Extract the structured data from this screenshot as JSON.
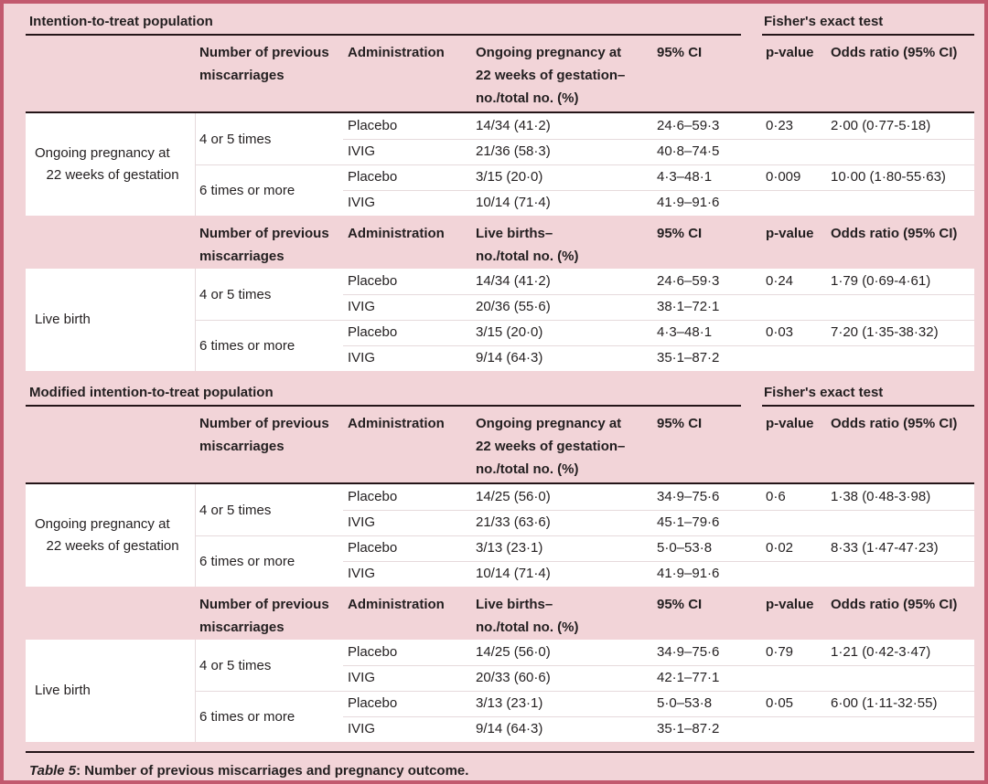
{
  "colors": {
    "frame_border": "#c2596e",
    "background_pink": "#f2d4d8",
    "dark_rule": "#241518",
    "light_rule": "#e6dadc",
    "data_background": "#ffffff",
    "text": "#231f20"
  },
  "caption": {
    "label": "Table 5",
    "text": ": Number of previous miscarriages and pregnancy outcome."
  },
  "sections": [
    {
      "title": "Intention-to-treat population",
      "fisher": "Fisher's exact test",
      "blocks": [
        {
          "header": {
            "miscarriages": "Number of previous miscarriages",
            "administration": "Administration",
            "outcome": "Ongoing pregnancy at\n22 weeks of gestation–\nno./total no. (%)",
            "ci": "95% CI",
            "p": "p-value",
            "or": "Odds ratio (95% CI)"
          },
          "row_label": "Ongoing pregnancy at\n   22 weeks of gestation",
          "groups": [
            {
              "times": "4 or 5 times",
              "p": "0·23",
              "or": "2·00 (0·77-5·18)",
              "rows": [
                {
                  "admin": "Placebo",
                  "outcome": "14/34 (41·2)",
                  "ci": "24·6–59·3"
                },
                {
                  "admin": "IVIG",
                  "outcome": "21/36 (58·3)",
                  "ci": "40·8–74·5"
                }
              ]
            },
            {
              "times": "6 times or more",
              "p": "0·009",
              "or": "10·00 (1·80-55·63)",
              "rows": [
                {
                  "admin": "Placebo",
                  "outcome": "3/15 (20·0)",
                  "ci": "4·3–48·1"
                },
                {
                  "admin": "IVIG",
                  "outcome": "10/14 (71·4)",
                  "ci": "41·9–91·6"
                }
              ]
            }
          ]
        },
        {
          "header": {
            "miscarriages": "Number of previous miscarriages",
            "administration": "Administration",
            "outcome": "Live births–\nno./total no. (%)",
            "ci": "95% CI",
            "p": "p-value",
            "or": "Odds ratio (95% CI)"
          },
          "row_label": "Live birth",
          "groups": [
            {
              "times": "4 or 5 times",
              "p": "0·24",
              "or": "1·79 (0·69-4·61)",
              "rows": [
                {
                  "admin": "Placebo",
                  "outcome": "14/34 (41·2)",
                  "ci": "24·6–59·3"
                },
                {
                  "admin": "IVIG",
                  "outcome": "20/36 (55·6)",
                  "ci": "38·1–72·1"
                }
              ]
            },
            {
              "times": "6 times or more",
              "p": "0·03",
              "or": "7·20 (1·35-38·32)",
              "rows": [
                {
                  "admin": "Placebo",
                  "outcome": "3/15 (20·0)",
                  "ci": "4·3–48·1"
                },
                {
                  "admin": "IVIG",
                  "outcome": "9/14 (64·3)",
                  "ci": "35·1–87·2"
                }
              ]
            }
          ]
        }
      ]
    },
    {
      "title": "Modified intention-to-treat population",
      "fisher": "Fisher's exact test",
      "blocks": [
        {
          "header": {
            "miscarriages": "Number of previous miscarriages",
            "administration": "Administration",
            "outcome": "Ongoing pregnancy at\n22 weeks of gestation–\nno./total no. (%)",
            "ci": "95% CI",
            "p": "p-value",
            "or": "Odds ratio (95% CI)"
          },
          "row_label": "Ongoing pregnancy at\n   22 weeks of gestation",
          "groups": [
            {
              "times": "4 or 5 times",
              "p": "0·6",
              "or": "1·38 (0·48-3·98)",
              "rows": [
                {
                  "admin": "Placebo",
                  "outcome": "14/25 (56·0)",
                  "ci": "34·9–75·6"
                },
                {
                  "admin": "IVIG",
                  "outcome": "21/33 (63·6)",
                  "ci": "45·1–79·6"
                }
              ]
            },
            {
              "times": "6 times or more",
              "p": "0·02",
              "or": "8·33 (1·47-47·23)",
              "rows": [
                {
                  "admin": "Placebo",
                  "outcome": "3/13 (23·1)",
                  "ci": "5·0–53·8"
                },
                {
                  "admin": "IVIG",
                  "outcome": "10/14 (71·4)",
                  "ci": "41·9–91·6"
                }
              ]
            }
          ]
        },
        {
          "header": {
            "miscarriages": "Number of previous miscarriages",
            "administration": "Administration",
            "outcome": "Live births–\nno./total no. (%)",
            "ci": "95% CI",
            "p": "p-value",
            "or": "Odds ratio (95% CI)"
          },
          "row_label": "Live birth",
          "groups": [
            {
              "times": "4 or 5 times",
              "p": "0·79",
              "or": "1·21 (0·42-3·47)",
              "rows": [
                {
                  "admin": "Placebo",
                  "outcome": "14/25 (56·0)",
                  "ci": "34·9–75·6"
                },
                {
                  "admin": "IVIG",
                  "outcome": "20/33 (60·6)",
                  "ci": "42·1–77·1"
                }
              ]
            },
            {
              "times": "6 times or more",
              "p": "0·05",
              "or": "6·00 (1·11-32·55)",
              "rows": [
                {
                  "admin": "Placebo",
                  "outcome": "3/13 (23·1)",
                  "ci": "5·0–53·8"
                },
                {
                  "admin": "IVIG",
                  "outcome": "9/14 (64·3)",
                  "ci": "35·1–87·2"
                }
              ]
            }
          ]
        }
      ]
    }
  ]
}
